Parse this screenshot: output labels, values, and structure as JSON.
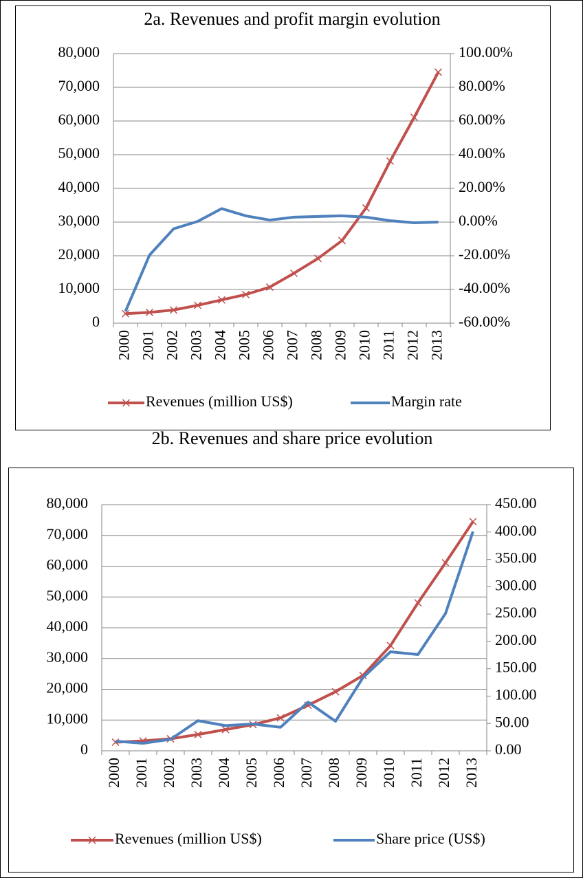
{
  "chart_data": [
    {
      "type": "line",
      "title": "2a. Revenues and profit margin evolution",
      "categories": [
        "2000",
        "2001",
        "2002",
        "2003",
        "2004",
        "2005",
        "2006",
        "2007",
        "2008",
        "2009",
        "2010",
        "2011",
        "2012",
        "2013"
      ],
      "series": [
        {
          "name": "Revenues (million US$)",
          "color": "#c0504d",
          "values": [
            2800,
            3200,
            3900,
            5300,
            6900,
            8500,
            10700,
            14800,
            19200,
            24500,
            34200,
            48100,
            61100,
            74500
          ]
        },
        {
          "name": "Margin rate",
          "color": "#4f81bd",
          "axis": "y2",
          "values": [
            -53,
            -19.6,
            -4,
            0.4,
            8,
            3.7,
            1.2,
            2.9,
            3.3,
            3.7,
            2.9,
            0.8,
            -0.4,
            0
          ]
        }
      ],
      "ylim": [
        0,
        80000
      ],
      "yticks": [
        0,
        {
          "value": 10000,
          "label": "10,000"
        },
        {
          "value": 20000,
          "label": "20,000"
        },
        {
          "value": 30000,
          "label": "30,000"
        },
        {
          "value": 40000,
          "label": "40,000"
        },
        {
          "value": 50000,
          "label": "50,000"
        },
        {
          "value": 60000,
          "label": "60,000"
        },
        {
          "value": 70000,
          "label": "70,000"
        },
        {
          "value": 80000,
          "label": "80,000"
        }
      ],
      "y2lim": [
        -60,
        100
      ],
      "y2ticks": [
        {
          "value": -60,
          "label": "-60.00%"
        },
        {
          "value": -40,
          "label": "-40.00%"
        },
        {
          "value": -20,
          "label": "-20.00%"
        },
        {
          "value": 0,
          "label": "0.00%"
        },
        {
          "value": 20,
          "label": "20.00%"
        },
        {
          "value": 40,
          "label": "40.00%"
        },
        {
          "value": 60,
          "label": "60.00%"
        },
        {
          "value": 80,
          "label": "80.00%"
        },
        {
          "value": 100,
          "label": "100.00%"
        }
      ],
      "grid": true,
      "legend": "bottom"
    },
    {
      "type": "line",
      "title": "2b. Revenues and share price evolution",
      "categories": [
        "2000",
        "2001",
        "2002",
        "2003",
        "2004",
        "2005",
        "2006",
        "2007",
        "2008",
        "2009",
        "2010",
        "2011",
        "2012",
        "2013"
      ],
      "series": [
        {
          "name": "Revenues (million US$)",
          "color": "#c0504d",
          "values": [
            2800,
            3200,
            3900,
            5300,
            6900,
            8500,
            10700,
            14800,
            19200,
            24500,
            34200,
            48100,
            61100,
            74500
          ]
        },
        {
          "name": "Share price (US$)",
          "color": "#4f81bd",
          "axis": "y2",
          "values": [
            17.6,
            13.8,
            21,
            55,
            46,
            49,
            43,
            89,
            54,
            134,
            181,
            176,
            251,
            401
          ]
        }
      ],
      "ylim": [
        0,
        80000
      ],
      "yticks": [
        0,
        {
          "value": 10000,
          "label": "10,000"
        },
        {
          "value": 20000,
          "label": "20,000"
        },
        {
          "value": 30000,
          "label": "30,000"
        },
        {
          "value": 40000,
          "label": "40,000"
        },
        {
          "value": 50000,
          "label": "50,000"
        },
        {
          "value": 60000,
          "label": "60,000"
        },
        {
          "value": 70000,
          "label": "70,000"
        },
        {
          "value": 80000,
          "label": "80,000"
        }
      ],
      "y2lim": [
        0,
        450
      ],
      "y2ticks": [
        {
          "value": 0,
          "label": "0.00"
        },
        {
          "value": 50,
          "label": "50.00"
        },
        {
          "value": 100,
          "label": "100.00"
        },
        {
          "value": 150,
          "label": "150.00"
        },
        {
          "value": 200,
          "label": "200.00"
        },
        {
          "value": 250,
          "label": "250.00"
        },
        {
          "value": 300,
          "label": "300.00"
        },
        {
          "value": 350,
          "label": "350.00"
        },
        {
          "value": 400,
          "label": "400.00"
        },
        {
          "value": 450,
          "label": "450.00"
        }
      ],
      "grid": true,
      "legend": "bottom"
    }
  ]
}
